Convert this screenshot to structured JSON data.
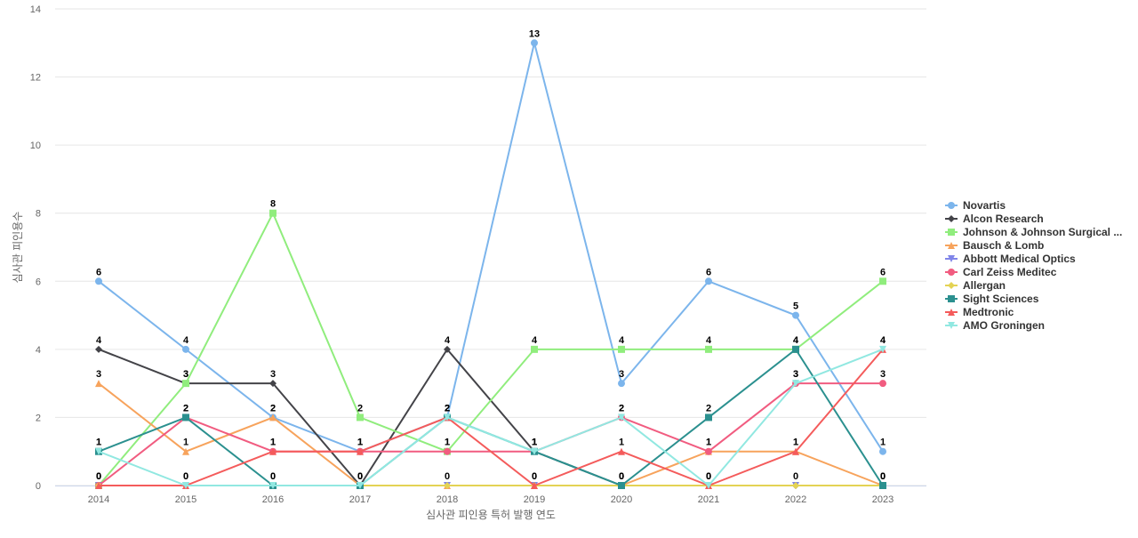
{
  "chart_data": {
    "type": "line",
    "title": "",
    "xlabel": "심사관 피인용 특허 발행 연도",
    "ylabel": "심사관 피인용수",
    "categories": [
      "2014",
      "2015",
      "2016",
      "2017",
      "2018",
      "2019",
      "2020",
      "2021",
      "2022",
      "2023"
    ],
    "ylim": [
      0,
      14
    ],
    "yticks": [
      0,
      2,
      4,
      6,
      8,
      10,
      12,
      14
    ],
    "grid": true,
    "legend_position": "right",
    "series": [
      {
        "name": "Novartis",
        "color": "#7cb5ec",
        "marker": "circle",
        "values": [
          6,
          4,
          2,
          1,
          2,
          13,
          3,
          6,
          5,
          1
        ]
      },
      {
        "name": "Alcon Research",
        "color": "#434348",
        "marker": "diamond",
        "values": [
          4,
          3,
          3,
          0,
          4,
          1,
          0,
          0,
          0,
          0
        ]
      },
      {
        "name": "Johnson & Johnson Surgical ...",
        "color": "#90ed7d",
        "marker": "square",
        "values": [
          0,
          3,
          8,
          2,
          1,
          4,
          4,
          4,
          4,
          6
        ]
      },
      {
        "name": "Bausch & Lomb",
        "color": "#f7a35c",
        "marker": "triangle",
        "values": [
          3,
          1,
          2,
          0,
          0,
          0,
          0,
          1,
          1,
          0
        ]
      },
      {
        "name": "Abbott Medical Optics",
        "color": "#8085e9",
        "marker": "triangle-down",
        "values": [
          0,
          0,
          0,
          0,
          0,
          0,
          0,
          0,
          0,
          0
        ]
      },
      {
        "name": "Carl Zeiss Meditec",
        "color": "#f15c80",
        "marker": "circle",
        "values": [
          0,
          2,
          1,
          1,
          1,
          1,
          2,
          1,
          3,
          3
        ]
      },
      {
        "name": "Allergan",
        "color": "#e4d354",
        "marker": "diamond",
        "values": [
          0,
          0,
          0,
          0,
          0,
          0,
          0,
          0,
          0,
          0
        ]
      },
      {
        "name": "Sight Sciences",
        "color": "#2b908f",
        "marker": "square",
        "values": [
          1,
          2,
          0,
          0,
          2,
          1,
          0,
          2,
          4,
          0
        ]
      },
      {
        "name": "Medtronic",
        "color": "#f45b5b",
        "marker": "triangle",
        "values": [
          0,
          0,
          1,
          1,
          2,
          0,
          1,
          0,
          1,
          4
        ]
      },
      {
        "name": "AMO Groningen",
        "color": "#91e8e1",
        "marker": "triangle-down",
        "values": [
          1,
          0,
          0,
          0,
          2,
          1,
          2,
          0,
          3,
          4
        ]
      }
    ],
    "data_labels": [
      {
        "series": "Novartis",
        "values": [
          6,
          4,
          2,
          1,
          2,
          13,
          3,
          6,
          5,
          1
        ]
      },
      {
        "series": "Alcon Research",
        "values": [
          4,
          3,
          3,
          0,
          4,
          1,
          0,
          0,
          0,
          0
        ]
      },
      {
        "series": "Johnson & Johnson Surgical ...",
        "values": [
          0,
          3,
          8,
          2,
          1,
          4,
          4,
          4,
          4,
          6
        ]
      },
      {
        "series": "Bausch & Lomb",
        "values": [
          3,
          1,
          2,
          0,
          0,
          0,
          0,
          1,
          1,
          0
        ]
      },
      {
        "series": "Carl Zeiss Meditec",
        "values": [
          0,
          2,
          1,
          1,
          1,
          1,
          2,
          1,
          3,
          3
        ]
      },
      {
        "series": "Sight Sciences",
        "values": [
          1,
          2,
          0,
          0,
          2,
          1,
          0,
          2,
          4,
          0
        ]
      },
      {
        "series": "Medtronic",
        "values": [
          0,
          0,
          1,
          1,
          2,
          0,
          1,
          0,
          1,
          4
        ]
      },
      {
        "series": "AMO Groningen",
        "values": [
          1,
          0,
          0,
          0,
          2,
          1,
          2,
          0,
          3,
          4
        ]
      }
    ]
  }
}
